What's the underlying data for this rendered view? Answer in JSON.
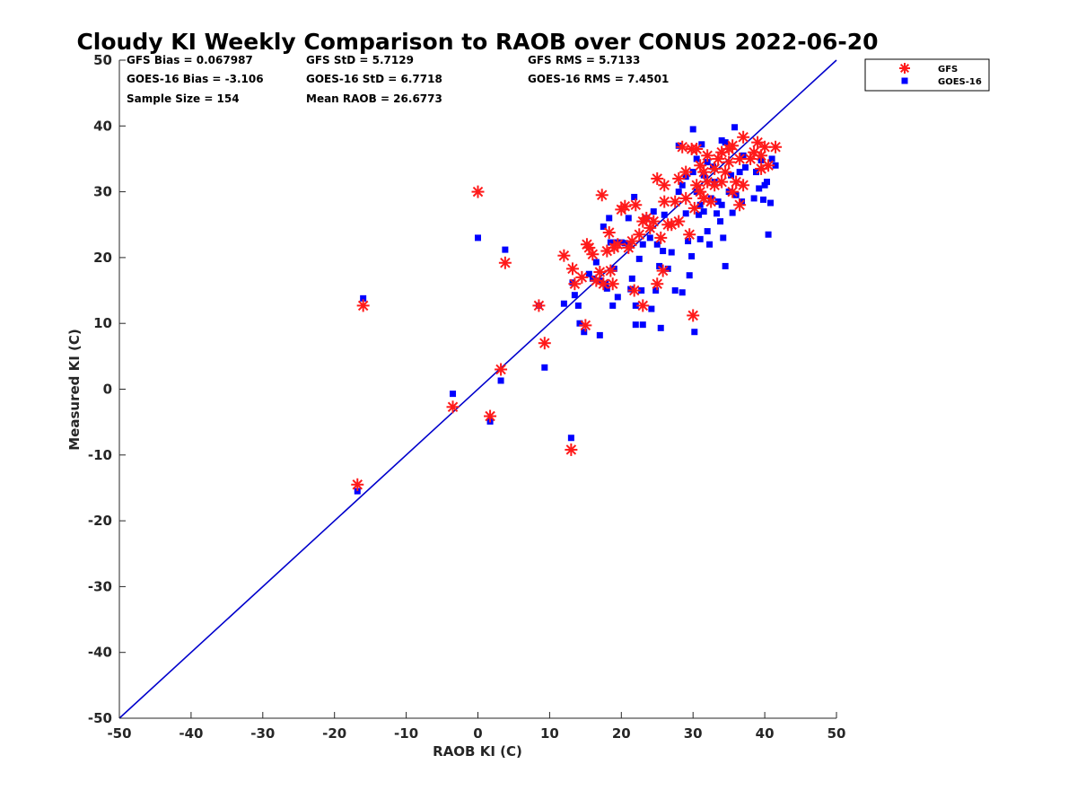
{
  "chart_data": {
    "type": "scatter",
    "title": "Cloudy KI Weekly Comparison to RAOB over CONUS 2022-06-20",
    "xlabel": "RAOB KI (C)",
    "ylabel": "Measured KI (C)",
    "xlim": [
      -50,
      50
    ],
    "ylim": [
      -50,
      50
    ],
    "xticks": [
      "-50",
      "-40",
      "-30",
      "-20",
      "-10",
      "0",
      "10",
      "20",
      "30",
      "40",
      "50"
    ],
    "yticks": [
      "-50",
      "-40",
      "-30",
      "-20",
      "-10",
      "0",
      "10",
      "20",
      "30",
      "40",
      "50"
    ],
    "reference_line": {
      "x": [
        -50,
        50
      ],
      "y": [
        -50,
        50
      ],
      "color": "#0000cc"
    },
    "grid": false,
    "legend_position": "top-right",
    "stats": [
      [
        "GFS Bias = 0.067987",
        "GFS StD = 5.7129",
        "GFS RMS = 5.7133"
      ],
      [
        "GOES-16 Bias = -3.106",
        "GOES-16 StD = 6.7718",
        "GOES-16 RMS = 7.4501"
      ],
      [
        "Sample Size = 154",
        "Mean RAOB = 26.6773"
      ]
    ],
    "series": [
      {
        "name": "GFS",
        "marker": "asterisk",
        "color": "#ff1a1a",
        "points": [
          [
            -16.8,
            -14.5
          ],
          [
            -16,
            12.7
          ],
          [
            -3.5,
            -2.7
          ],
          [
            0,
            30
          ],
          [
            1.7,
            -4.1
          ],
          [
            3.2,
            3
          ],
          [
            3.8,
            19.2
          ],
          [
            8.5,
            12.7
          ],
          [
            9.3,
            7
          ],
          [
            12,
            20.3
          ],
          [
            13,
            -9.2
          ],
          [
            13.2,
            18.3
          ],
          [
            13.5,
            16
          ],
          [
            14.5,
            17
          ],
          [
            15,
            9.7
          ],
          [
            15.2,
            22
          ],
          [
            15.5,
            21.5
          ],
          [
            16,
            20.5
          ],
          [
            16.5,
            16.5
          ],
          [
            17,
            17.8
          ],
          [
            17.3,
            29.5
          ],
          [
            17.5,
            16
          ],
          [
            18,
            21
          ],
          [
            18.3,
            23.8
          ],
          [
            18.5,
            18
          ],
          [
            18.8,
            16
          ],
          [
            19,
            21.5
          ],
          [
            19.5,
            22
          ],
          [
            20,
            27.3
          ],
          [
            20.5,
            27.8
          ],
          [
            21,
            21.5
          ],
          [
            21.5,
            22.5
          ],
          [
            21.8,
            15
          ],
          [
            22,
            28
          ],
          [
            22.5,
            23.5
          ],
          [
            23,
            12.7
          ],
          [
            23,
            25.5
          ],
          [
            23.5,
            26
          ],
          [
            24,
            24.5
          ],
          [
            24.5,
            25.5
          ],
          [
            25,
            32
          ],
          [
            25,
            16
          ],
          [
            25.5,
            23
          ],
          [
            25.8,
            18
          ],
          [
            26,
            28.5
          ],
          [
            26,
            31
          ],
          [
            26.5,
            25
          ],
          [
            27,
            25
          ],
          [
            27.5,
            28.5
          ],
          [
            28,
            32
          ],
          [
            28,
            25.5
          ],
          [
            28.5,
            36.8
          ],
          [
            29,
            29
          ],
          [
            29,
            33
          ],
          [
            29.5,
            23.5
          ],
          [
            29.8,
            36.5
          ],
          [
            30,
            11.2
          ],
          [
            30.2,
            27.5
          ],
          [
            30.5,
            31
          ],
          [
            30.5,
            36.5
          ],
          [
            31,
            34
          ],
          [
            31,
            30
          ],
          [
            31.5,
            33
          ],
          [
            31.5,
            29
          ],
          [
            32,
            35.5
          ],
          [
            32,
            31.5
          ],
          [
            32.5,
            28.5
          ],
          [
            33,
            31
          ],
          [
            33,
            33.5
          ],
          [
            33.5,
            35
          ],
          [
            34,
            36
          ],
          [
            34,
            31.5
          ],
          [
            34.5,
            33
          ],
          [
            35,
            34.5
          ],
          [
            35,
            36.5
          ],
          [
            35.5,
            30
          ],
          [
            35.5,
            37
          ],
          [
            36,
            31.5
          ],
          [
            36.5,
            28
          ],
          [
            36.5,
            35
          ],
          [
            37,
            38.3
          ],
          [
            37,
            31
          ],
          [
            38,
            35
          ],
          [
            38.5,
            36
          ],
          [
            39,
            37.5
          ],
          [
            39.5,
            33.5
          ],
          [
            39.5,
            35.5
          ],
          [
            40,
            36.8
          ],
          [
            40.5,
            34
          ],
          [
            41.5,
            36.8
          ]
        ]
      },
      {
        "name": "GOES-16",
        "marker": "square",
        "color": "#0000ff",
        "points": [
          [
            -16.8,
            -15.5
          ],
          [
            -16,
            13.8
          ],
          [
            -3.5,
            -0.7
          ],
          [
            0,
            23
          ],
          [
            1.7,
            -4.9
          ],
          [
            3.2,
            1.3
          ],
          [
            3.8,
            21.2
          ],
          [
            8.5,
            12.7
          ],
          [
            9.3,
            3.3
          ],
          [
            12,
            13
          ],
          [
            13,
            -7.4
          ],
          [
            13.2,
            16.2
          ],
          [
            13.5,
            14.3
          ],
          [
            14,
            12.7
          ],
          [
            14.2,
            10
          ],
          [
            14.8,
            8.7
          ],
          [
            15.5,
            17.5
          ],
          [
            16,
            16.8
          ],
          [
            16.5,
            19.3
          ],
          [
            17,
            8.2
          ],
          [
            17,
            16.5
          ],
          [
            17.5,
            24.7
          ],
          [
            17.8,
            16
          ],
          [
            18,
            15.3
          ],
          [
            18.3,
            26
          ],
          [
            18.5,
            22.3
          ],
          [
            18.8,
            12.7
          ],
          [
            19,
            18.3
          ],
          [
            19.3,
            22.3
          ],
          [
            19.5,
            14
          ],
          [
            20,
            22.3
          ],
          [
            20.5,
            22.2
          ],
          [
            21,
            26
          ],
          [
            21,
            22
          ],
          [
            21.3,
            15.2
          ],
          [
            21.5,
            16.8
          ],
          [
            21.8,
            29.2
          ],
          [
            22,
            12.7
          ],
          [
            22,
            9.8
          ],
          [
            22.5,
            19.8
          ],
          [
            22.8,
            15
          ],
          [
            23,
            9.8
          ],
          [
            23,
            22
          ],
          [
            23.5,
            26
          ],
          [
            24,
            23
          ],
          [
            24.2,
            12.2
          ],
          [
            24.5,
            27
          ],
          [
            24.8,
            15
          ],
          [
            25,
            22
          ],
          [
            25.3,
            18.7
          ],
          [
            25.5,
            9.3
          ],
          [
            25.8,
            21
          ],
          [
            26,
            26.5
          ],
          [
            26.5,
            18.3
          ],
          [
            27,
            20.8
          ],
          [
            27.5,
            15
          ],
          [
            28,
            37
          ],
          [
            28,
            30
          ],
          [
            28.5,
            14.7
          ],
          [
            28.5,
            31
          ],
          [
            29,
            26.7
          ],
          [
            29,
            32.3
          ],
          [
            29.3,
            22.5
          ],
          [
            29.5,
            17.3
          ],
          [
            29.8,
            20.2
          ],
          [
            30,
            39.5
          ],
          [
            30,
            33
          ],
          [
            30.2,
            8.7
          ],
          [
            30.5,
            35
          ],
          [
            30.5,
            30
          ],
          [
            30.8,
            26.5
          ],
          [
            31,
            28
          ],
          [
            31,
            22.8
          ],
          [
            31.2,
            37.2
          ],
          [
            31.5,
            32.5
          ],
          [
            31.5,
            27
          ],
          [
            32,
            34.5
          ],
          [
            32,
            24
          ],
          [
            32.3,
            22
          ],
          [
            32.5,
            29
          ],
          [
            32.8,
            33.8
          ],
          [
            33,
            31.5
          ],
          [
            33.3,
            26.7
          ],
          [
            33.5,
            28.5
          ],
          [
            33.8,
            25.5
          ],
          [
            34,
            37.8
          ],
          [
            34,
            28
          ],
          [
            34.2,
            23
          ],
          [
            34.5,
            18.7
          ],
          [
            34.5,
            37.5
          ],
          [
            35,
            30
          ],
          [
            35.3,
            32.5
          ],
          [
            35.5,
            26.8
          ],
          [
            35.8,
            39.8
          ],
          [
            36,
            29.5
          ],
          [
            36.5,
            33
          ],
          [
            36.8,
            28.5
          ],
          [
            37,
            35.5
          ],
          [
            37.3,
            33.7
          ],
          [
            38.5,
            29
          ],
          [
            38.8,
            33
          ],
          [
            39.2,
            30.5
          ],
          [
            39.5,
            34.8
          ],
          [
            39.8,
            28.8
          ],
          [
            40,
            31
          ],
          [
            40.3,
            31.5
          ],
          [
            40.5,
            23.5
          ],
          [
            40.8,
            28.3
          ],
          [
            41,
            35
          ],
          [
            41.5,
            34
          ]
        ]
      }
    ]
  }
}
